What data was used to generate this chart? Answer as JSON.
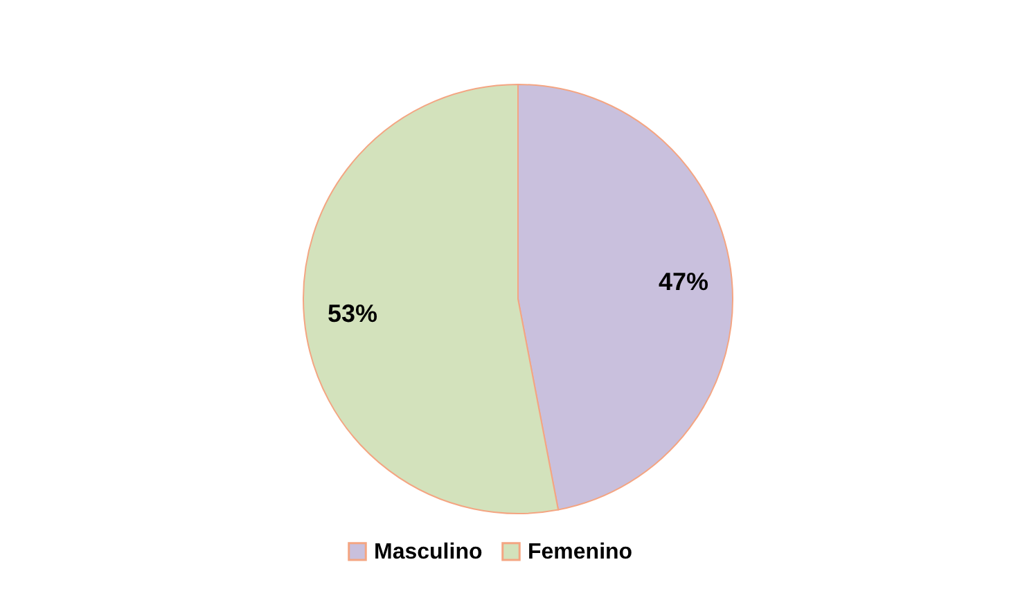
{
  "chart_data": {
    "type": "pie",
    "categories": [
      "Masculino",
      "Femenino"
    ],
    "values": [
      47,
      53
    ],
    "colors": [
      "#c9c0dd",
      "#d3e2bc"
    ],
    "value_labels": [
      "47%",
      "53%"
    ],
    "legend": "bottom"
  }
}
